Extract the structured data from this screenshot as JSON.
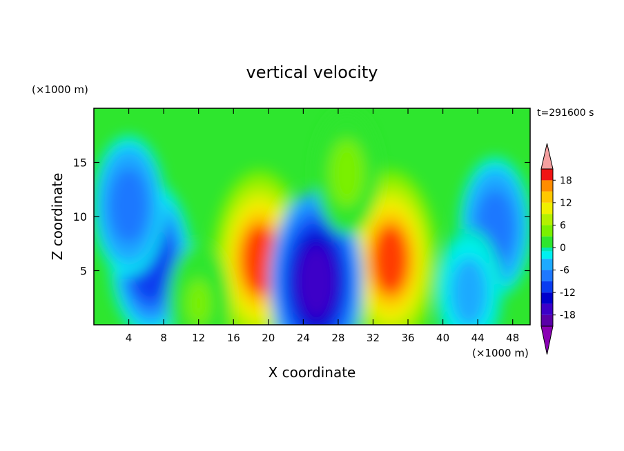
{
  "chart_data": {
    "type": "heatmap",
    "title": "vertical velocity",
    "xlabel": "X coordinate",
    "ylabel": "Z coordinate",
    "x_unit": "(×1000 m)",
    "y_unit": "(×1000 m)",
    "time_label": "t=291600 s",
    "x_ticks": [
      4,
      8,
      12,
      16,
      20,
      24,
      28,
      32,
      36,
      40,
      44,
      48
    ],
    "y_ticks": [
      5,
      10,
      15
    ],
    "xlim": [
      0,
      50
    ],
    "ylim": [
      0,
      20
    ],
    "colorbar": {
      "tick_labels": [
        "18",
        "12",
        "6",
        "0",
        "-6",
        "-12",
        "-18"
      ],
      "tick_values": [
        18,
        12,
        6,
        0,
        -6,
        -12,
        -18
      ],
      "range": [
        -21,
        21
      ],
      "extend": "both"
    },
    "features": [
      {
        "x": 19.0,
        "z": 6.0,
        "peak": 18
      },
      {
        "x": 34.0,
        "z": 6.0,
        "peak": 18
      },
      {
        "x": 25.5,
        "z": 4.0,
        "peak": -18
      },
      {
        "x": 6.5,
        "z": 6.0,
        "peak": -12
      },
      {
        "x": 4.0,
        "z": 11.0,
        "peak": -8
      },
      {
        "x": 46.0,
        "z": 9.0,
        "peak": -8
      },
      {
        "x": 29.0,
        "z": 14.0,
        "peak": 4
      },
      {
        "x": 12.0,
        "z": 2.0,
        "peak": 3
      },
      {
        "x": 43.0,
        "z": 3.0,
        "peak": -5
      }
    ]
  }
}
